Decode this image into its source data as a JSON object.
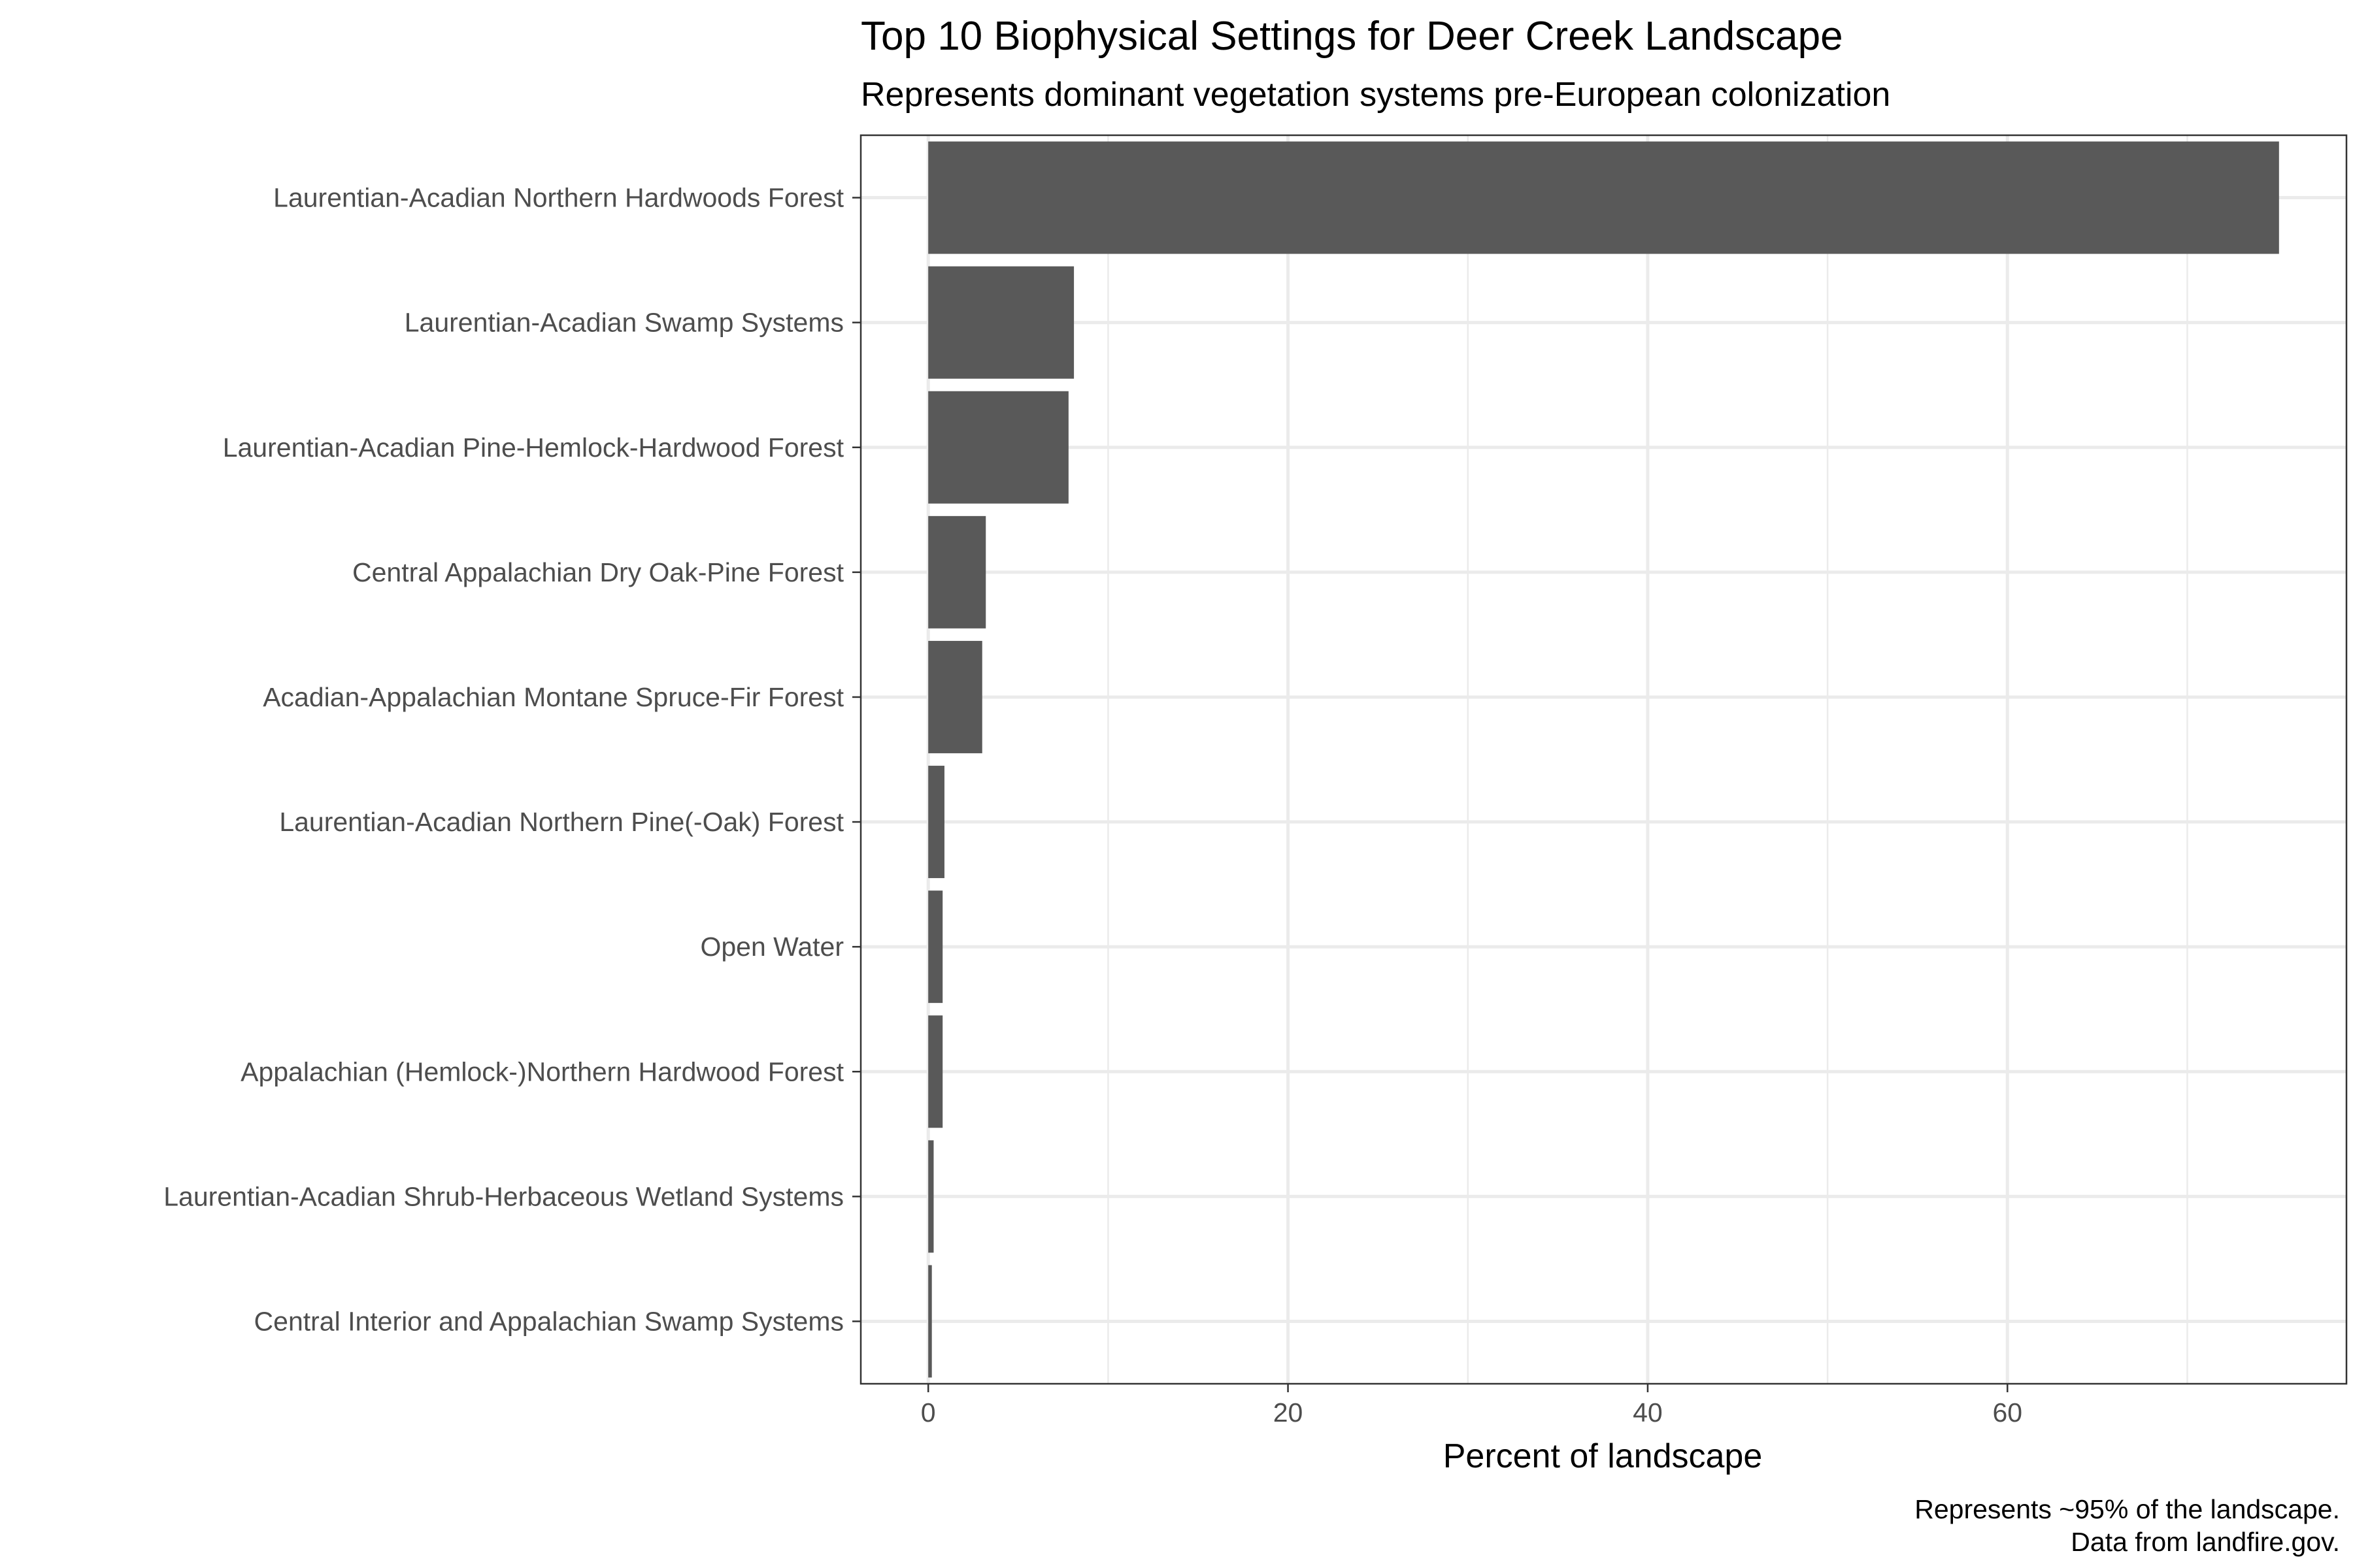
{
  "chart_data": {
    "type": "bar",
    "orientation": "horizontal",
    "title": "Top 10 Biophysical Settings for Deer Creek Landscape",
    "subtitle": "Represents dominant vegetation systems pre-European colonization",
    "xlabel": "Percent of landscape",
    "ylabel": "",
    "caption_lines": [
      "Represents ~95% of the landscape.",
      "Data from landfire.gov."
    ],
    "categories": [
      "Laurentian-Acadian Northern Hardwoods Forest",
      "Laurentian-Acadian Swamp Systems",
      "Laurentian-Acadian Pine-Hemlock-Hardwood Forest",
      "Central Appalachian Dry Oak-Pine Forest",
      "Acadian-Appalachian Montane Spruce-Fir Forest",
      "Laurentian-Acadian Northern Pine(-Oak) Forest",
      "Open Water",
      "Appalachian (Hemlock-)Northern Hardwood Forest",
      "Laurentian-Acadian Shrub-Herbaceous Wetland Systems",
      "Central Interior and Appalachian Swamp Systems"
    ],
    "values": [
      75.1,
      8.1,
      7.8,
      3.2,
      3.0,
      0.9,
      0.8,
      0.8,
      0.3,
      0.2
    ],
    "xlim": [
      -3.75,
      78.85
    ],
    "xticks": [
      0,
      20,
      40,
      60
    ],
    "xticks_labels": [
      "0",
      "20",
      "40",
      "60"
    ],
    "grid": true,
    "legend": "none",
    "colors": {
      "bar": "#595959",
      "grid": "#ebebeb",
      "panel_border": "#333333",
      "axis_text": "#4d4d4d"
    }
  }
}
